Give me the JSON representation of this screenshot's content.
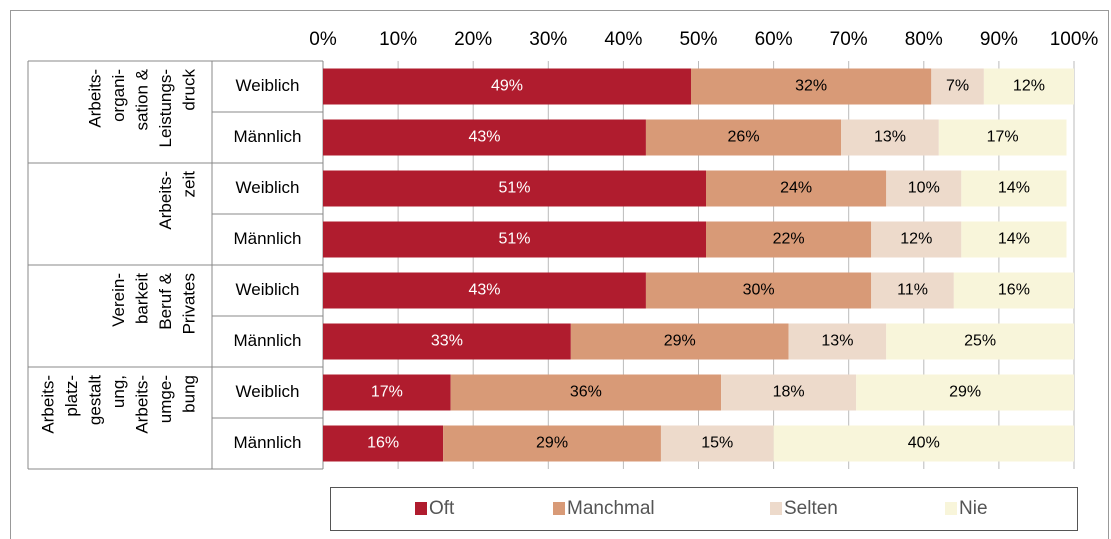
{
  "chart_data": {
    "type": "bar",
    "orientation": "horizontal",
    "stacked": true,
    "groups": [
      {
        "lines": [
          "Arbeits-",
          "organi-",
          "sation &",
          "Leistungs-",
          "druck"
        ]
      },
      {
        "lines": [
          "Arbeits-",
          "zeit"
        ]
      },
      {
        "lines": [
          "Verein-",
          "barkeit",
          "Beruf &",
          "Privates"
        ]
      },
      {
        "lines": [
          "Arbeits-",
          "platz-",
          "gestalt",
          "ung,",
          "Arbeits-",
          "umge-",
          "bung"
        ]
      }
    ],
    "categories": [
      "Weiblich",
      "Männlich",
      "Weiblich",
      "Männlich",
      "Weiblich",
      "Männlich",
      "Weiblich",
      "Männlich"
    ],
    "series": [
      {
        "name": "Oft",
        "color": "#b01c2e",
        "label_color": "#ffffff",
        "values": [
          49,
          43,
          51,
          51,
          43,
          33,
          17,
          16
        ],
        "value_labels": [
          "49%",
          "43%",
          "51%",
          "51%",
          "43%",
          "33%",
          "17%",
          "16%"
        ]
      },
      {
        "name": "Manchmal",
        "color": "#d89a77",
        "label_color": "#000000",
        "values": [
          32,
          26,
          24,
          22,
          30,
          29,
          36,
          29
        ],
        "value_labels": [
          "32%",
          "26%",
          "24%",
          "22%",
          "30%",
          "29%",
          "36%",
          "29%"
        ]
      },
      {
        "name": "Selten",
        "color": "#eddacb",
        "label_color": "#000000",
        "values": [
          7,
          13,
          10,
          12,
          11,
          13,
          18,
          15
        ],
        "value_labels": [
          "7%",
          "13%",
          "10%",
          "12%",
          "11%",
          "13%",
          "18%",
          "15%"
        ]
      },
      {
        "name": "Nie",
        "color": "#f8f5da",
        "label_color": "#000000",
        "values": [
          12,
          17,
          14,
          14,
          16,
          25,
          29,
          40
        ],
        "value_labels": [
          "12%",
          "17%",
          "14%",
          "14%",
          "16%",
          "25%",
          "29%",
          "40%"
        ]
      }
    ],
    "xlim": [
      0,
      100
    ],
    "xticks": [
      {
        "value": 0,
        "label": "0%"
      },
      {
        "value": 10,
        "label": "10%"
      },
      {
        "value": 20,
        "label": "20%"
      },
      {
        "value": 30,
        "label": "30%"
      },
      {
        "value": 40,
        "label": "40%"
      },
      {
        "value": 50,
        "label": "50%"
      },
      {
        "value": 60,
        "label": "60%"
      },
      {
        "value": 70,
        "label": "70%"
      },
      {
        "value": 80,
        "label": "80%"
      },
      {
        "value": 90,
        "label": "90%"
      },
      {
        "value": 100,
        "label": "100%"
      }
    ],
    "grid": true,
    "legend": "bottom"
  }
}
